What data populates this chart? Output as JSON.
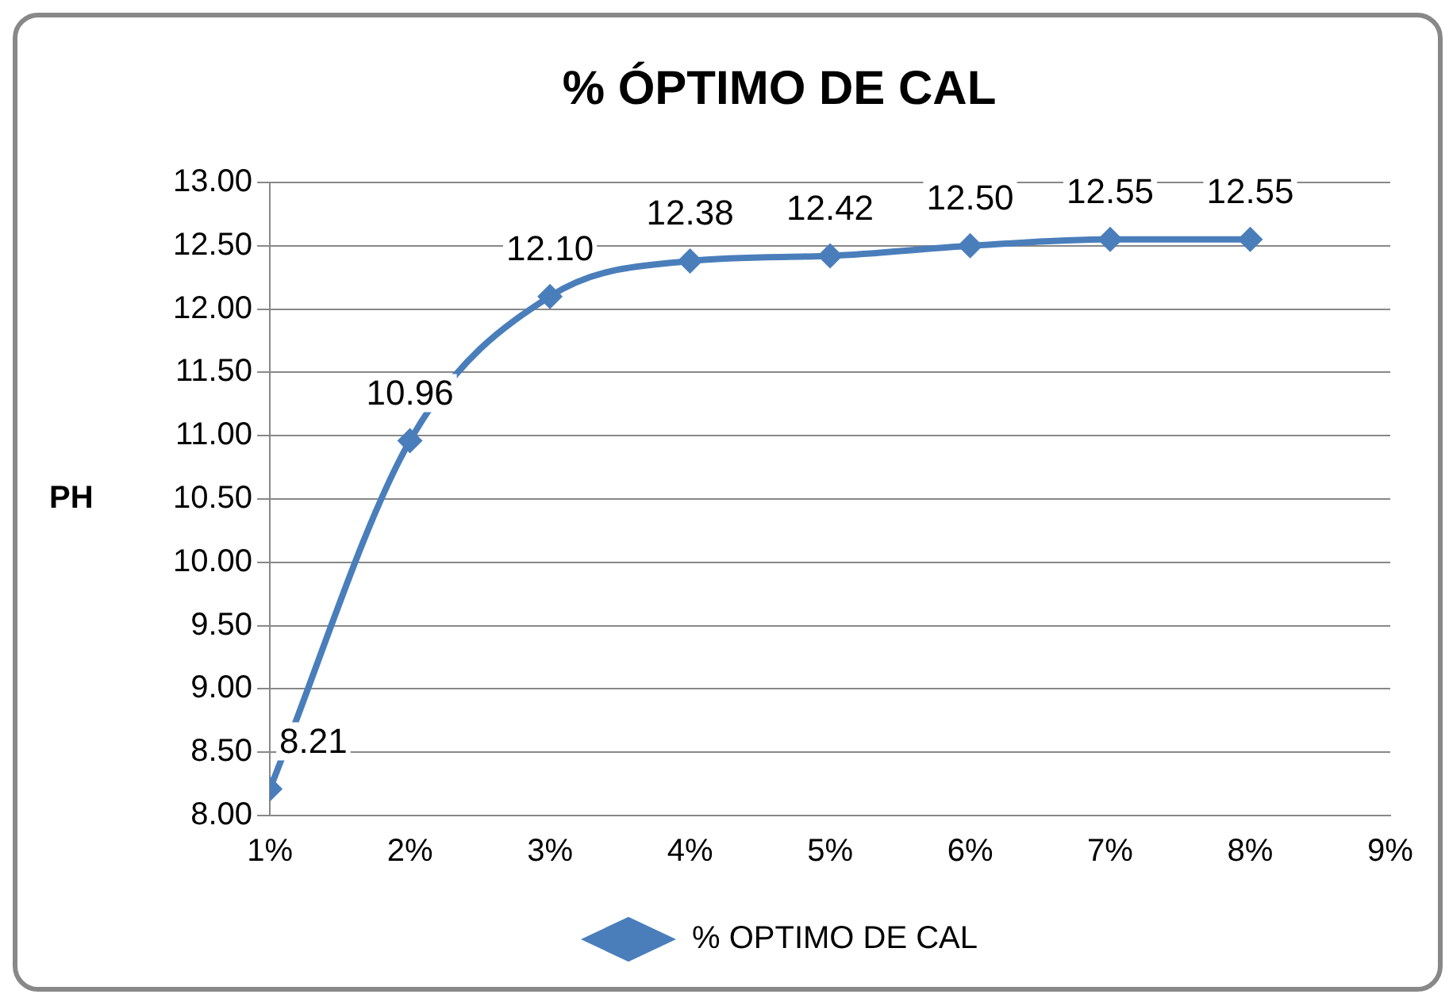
{
  "chart_data": {
    "type": "line",
    "title": "% ÓPTIMO DE CAL",
    "ylabel": "PH",
    "x": [
      1,
      2,
      3,
      4,
      5,
      6,
      7,
      8
    ],
    "xlim": [
      1,
      9
    ],
    "xticks": [
      {
        "value": 1,
        "label": "1%"
      },
      {
        "value": 2,
        "label": "2%"
      },
      {
        "value": 3,
        "label": "3%"
      },
      {
        "value": 4,
        "label": "4%"
      },
      {
        "value": 5,
        "label": "5%"
      },
      {
        "value": 6,
        "label": "6%"
      },
      {
        "value": 7,
        "label": "7%"
      },
      {
        "value": 8,
        "label": "8%"
      },
      {
        "value": 9,
        "label": "9%"
      }
    ],
    "ylim": [
      8,
      13
    ],
    "yticks": [
      {
        "value": 8,
        "label": "8.00"
      },
      {
        "value": 8.5,
        "label": "8.50"
      },
      {
        "value": 9,
        "label": "9.00"
      },
      {
        "value": 9.5,
        "label": "9.50"
      },
      {
        "value": 10,
        "label": "10.00"
      },
      {
        "value": 10.5,
        "label": "10.50"
      },
      {
        "value": 11,
        "label": "11.00"
      },
      {
        "value": 11.5,
        "label": "11.50"
      },
      {
        "value": 12,
        "label": "12.00"
      },
      {
        "value": 12.5,
        "label": "12.50"
      },
      {
        "value": 13,
        "label": "13.00"
      }
    ],
    "series": [
      {
        "name": "% OPTIMO DE CAL",
        "color": "#4a7ebb",
        "values": [
          8.21,
          10.96,
          12.1,
          12.38,
          12.42,
          12.5,
          12.55,
          12.55
        ],
        "value_labels": [
          "8.21",
          "10.96",
          "12.10",
          "12.38",
          "12.42",
          "12.50",
          "12.55",
          "12.55"
        ]
      }
    ],
    "grid": "y",
    "legend": "bottom",
    "marker": "diamond",
    "line_style": "solid"
  }
}
